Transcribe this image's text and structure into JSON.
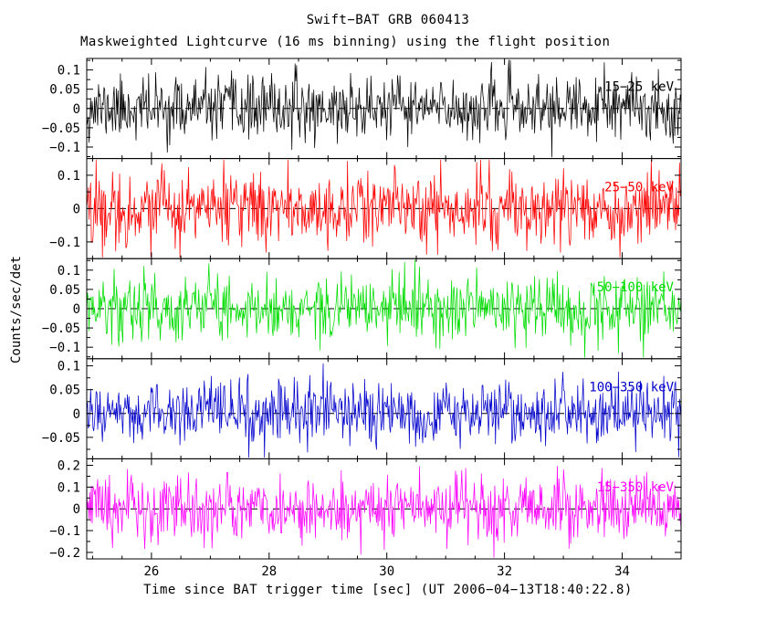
{
  "chart_data": {
    "type": "line",
    "title": "Swift−BAT GRB 060413",
    "subtitle": "Maskweighted Lightcurve (16 ms binning) using the flight position",
    "xlabel": "Time since BAT trigger time [sec] (UT 2006−04−13T18:40:22.8)",
    "ylabel": "Counts/sec/det",
    "xlim": [
      24.9,
      35.0
    ],
    "x_major_ticks": [
      26,
      28,
      30,
      32,
      34
    ],
    "x_minor_step": 0.5,
    "grid": false,
    "zero_line_style": "dashed",
    "legend_position": "inside-right of each panel",
    "description": "Five stacked mask-weighted BAT lightcurve panels (16 ms bins) of background-dominated noise fluctuating about zero; no prominent burst structure in the 24.9-35.0 s window.",
    "n_points_per_panel": 760,
    "panels": [
      {
        "id": "15-25",
        "label": "15−25 keV",
        "color": "#000000",
        "ylim": [
          -0.13,
          0.13
        ],
        "yticks": [
          0.1,
          0.05,
          0,
          -0.05,
          -0.1
        ],
        "noise": {
          "mean": 0,
          "sigma": 0.04
        },
        "seed": 11
      },
      {
        "id": "25-50",
        "label": "25−50 keV",
        "color": "#ff0000",
        "ylim": [
          -0.15,
          0.15
        ],
        "yticks": [
          0.1,
          0,
          -0.1
        ],
        "noise": {
          "mean": 0,
          "sigma": 0.055
        },
        "seed": 22
      },
      {
        "id": "50-100",
        "label": "50−100 keV",
        "color": "#00dd00",
        "ylim": [
          -0.13,
          0.13
        ],
        "yticks": [
          0.1,
          0.05,
          0,
          -0.05,
          -0.1
        ],
        "noise": {
          "mean": 0,
          "sigma": 0.042
        },
        "seed": 33
      },
      {
        "id": "100-350",
        "label": "100−350 keV",
        "color": "#0000cc",
        "ylim": [
          -0.095,
          0.115
        ],
        "yticks": [
          0.1,
          0.05,
          0,
          -0.05
        ],
        "noise": {
          "mean": 0,
          "sigma": 0.032
        },
        "seed": 44
      },
      {
        "id": "15-350",
        "label": "15−350 keV",
        "color": "#ff00ff",
        "ylim": [
          -0.23,
          0.23
        ],
        "yticks": [
          0.2,
          0.1,
          0,
          -0.1,
          -0.2
        ],
        "noise": {
          "mean": 0,
          "sigma": 0.075
        },
        "seed": 55
      }
    ]
  }
}
